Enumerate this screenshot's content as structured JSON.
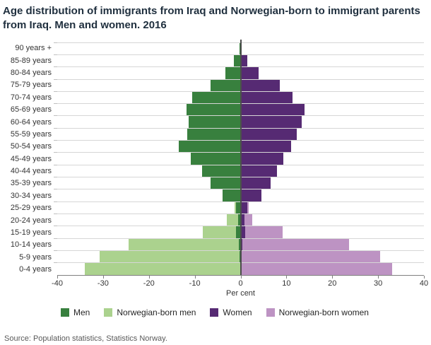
{
  "title": "Age distribution of immigrants from Iraq and Norwegian-born to immigrant parents from Iraq. Men and women. 2016",
  "source": "Source: Population statistics, Statistics Norway.",
  "colors": {
    "men": "#38803e",
    "norwegian_born_men": "#abd28e",
    "women": "#562a73",
    "norwegian_born_women": "#bd93c3",
    "gridline": "#d6d6d6",
    "axis": "#808080",
    "zero_line": "#4d4d4d"
  },
  "chart_data": {
    "type": "bar",
    "variant": "population-pyramid",
    "orientation": "horizontal",
    "stacked": true,
    "title": "Age distribution of immigrants from Iraq and Norwegian-born to immigrant parents from Iraq. Men and women. 2016",
    "xlabel": "Per cent",
    "ylabel": "",
    "xlim": [
      -40,
      40
    ],
    "xticks": [
      -40,
      -30,
      -20,
      -10,
      0,
      10,
      20,
      30,
      40
    ],
    "grid": "horizontal",
    "legend_position": "bottom",
    "categories": [
      "90 years +",
      "85-89 years",
      "80-84 years",
      "75-79 years",
      "70-74 years",
      "65-69 years",
      "60-64 years",
      "55-59 years",
      "50-54 years",
      "45-49 years",
      "40-44 years",
      "35-39 years",
      "30-34 years",
      "25-29 years",
      "20-24 years",
      "15-19 years",
      "10-14 years",
      "5-9 years",
      "0-4 years"
    ],
    "series": [
      {
        "name": "Men",
        "side": "left",
        "color": "#38803e",
        "values": [
          0.3,
          1.4,
          3.3,
          6.5,
          10.5,
          11.8,
          11.3,
          11.7,
          13.5,
          10.8,
          8.4,
          6.5,
          4.0,
          1.0,
          0.6,
          1.0,
          0.4,
          0.2,
          0.1
        ]
      },
      {
        "name": "Norwegian-born men",
        "side": "left",
        "color": "#abd28e",
        "values": [
          0,
          0,
          0,
          0,
          0,
          0,
          0,
          0,
          0,
          0,
          0,
          0,
          0,
          0.3,
          2.4,
          7.3,
          24.0,
          30.5,
          33.9
        ]
      },
      {
        "name": "Women",
        "side": "right",
        "color": "#562a73",
        "values": [
          0.3,
          1.4,
          4.0,
          8.6,
          11.4,
          14.0,
          13.3,
          12.2,
          11.0,
          9.3,
          7.9,
          6.6,
          4.6,
          1.4,
          0.9,
          1.0,
          0.4,
          0.2,
          0.1
        ]
      },
      {
        "name": "Norwegian-born women",
        "side": "right",
        "color": "#bd93c3",
        "values": [
          0,
          0,
          0,
          0,
          0,
          0,
          0,
          0,
          0,
          0,
          0,
          0,
          0,
          0.4,
          1.6,
          8.2,
          23.2,
          30.2,
          33.0
        ]
      }
    ]
  }
}
